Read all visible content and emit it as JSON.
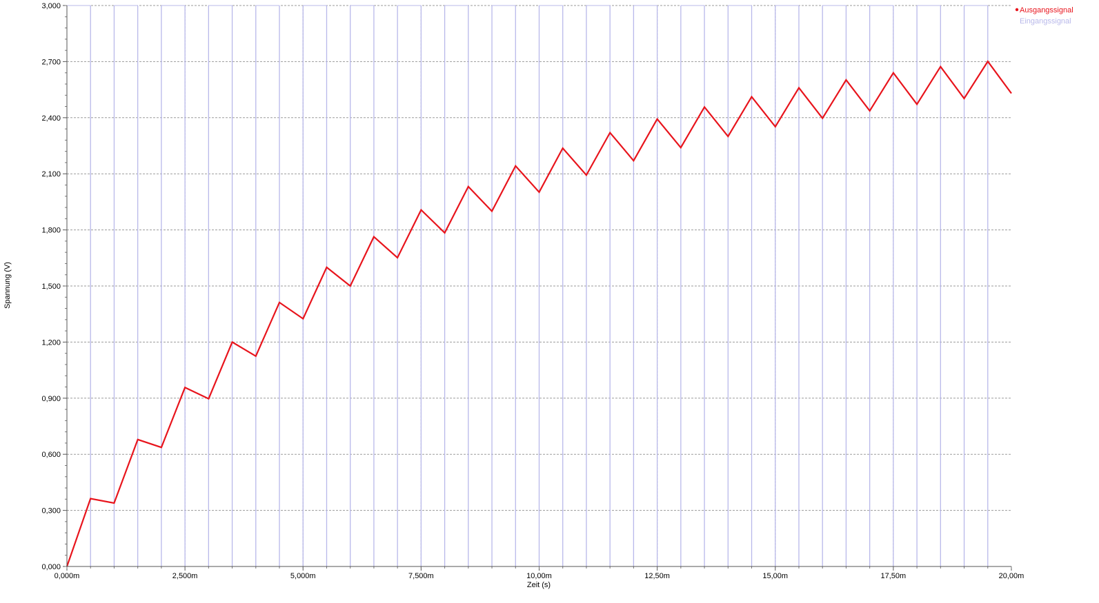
{
  "chart_data": {
    "type": "line",
    "title": "",
    "xlabel": "Zeit (s)",
    "ylabel": "Spannung (V)",
    "xlim": [
      0,
      0.02
    ],
    "ylim": [
      0,
      3.0
    ],
    "grid": true,
    "legend_position": "top-right",
    "x_ticks": [
      {
        "value": 0.0,
        "label": "0,000m"
      },
      {
        "value": 0.0025,
        "label": "2,500m"
      },
      {
        "value": 0.005,
        "label": "5,000m"
      },
      {
        "value": 0.0075,
        "label": "7,500m"
      },
      {
        "value": 0.01,
        "label": "10,00m"
      },
      {
        "value": 0.0125,
        "label": "12,50m"
      },
      {
        "value": 0.015,
        "label": "15,00m"
      },
      {
        "value": 0.0175,
        "label": "17,50m"
      },
      {
        "value": 0.02,
        "label": "20,00m"
      }
    ],
    "y_ticks": [
      {
        "value": 0.0,
        "label": "0,000"
      },
      {
        "value": 0.3,
        "label": "0,300"
      },
      {
        "value": 0.6,
        "label": "0,600"
      },
      {
        "value": 0.9,
        "label": "0,900"
      },
      {
        "value": 1.2,
        "label": "1,200"
      },
      {
        "value": 1.5,
        "label": "1,500"
      },
      {
        "value": 1.8,
        "label": "1,800"
      },
      {
        "value": 2.1,
        "label": "2,100"
      },
      {
        "value": 2.4,
        "label": "2,400"
      },
      {
        "value": 2.7,
        "label": "2,700"
      },
      {
        "value": 3.0,
        "label": "3,000"
      }
    ],
    "series": [
      {
        "name": "Ausgangssignal",
        "color": "#e8141c",
        "style": "line",
        "x": [
          0,
          0.0005,
          0.001,
          0.0015,
          0.002,
          0.0025,
          0.003,
          0.0035,
          0.004,
          0.0045,
          0.005,
          0.0055,
          0.006,
          0.0065,
          0.007,
          0.0075,
          0.008,
          0.0085,
          0.009,
          0.0095,
          0.01,
          0.0105,
          0.011,
          0.0115,
          0.012,
          0.0125,
          0.013,
          0.0135,
          0.014,
          0.0145,
          0.015,
          0.0155,
          0.016,
          0.0165,
          0.017,
          0.0175,
          0.018,
          0.0185,
          0.019,
          0.0195,
          0.02
        ],
        "y": [
          0.0,
          0.363,
          0.339,
          0.679,
          0.637,
          0.957,
          0.897,
          1.2,
          1.125,
          1.412,
          1.325,
          1.6,
          1.5,
          1.763,
          1.651,
          1.907,
          1.784,
          2.032,
          1.9,
          2.142,
          2.002,
          2.237,
          2.093,
          2.32,
          2.17,
          2.393,
          2.24,
          2.457,
          2.3,
          2.512,
          2.352,
          2.56,
          2.397,
          2.602,
          2.437,
          2.64,
          2.472,
          2.673,
          2.503,
          2.701,
          2.53
        ]
      },
      {
        "name": "Eingangssignal",
        "color": "#b8b8ea",
        "style": "square-wave",
        "edges_x": [
          0.0005,
          0.001,
          0.0015,
          0.002,
          0.0025,
          0.003,
          0.0035,
          0.004,
          0.0045,
          0.005,
          0.0055,
          0.006,
          0.0065,
          0.007,
          0.0075,
          0.008,
          0.0085,
          0.009,
          0.0095,
          0.01,
          0.0105,
          0.011,
          0.0115,
          0.012,
          0.0125,
          0.013,
          0.0135,
          0.014,
          0.0145,
          0.015,
          0.0155,
          0.016,
          0.0165,
          0.017,
          0.0175,
          0.018,
          0.0185,
          0.019,
          0.0195
        ],
        "levels": [
          0,
          3.0
        ]
      }
    ]
  }
}
